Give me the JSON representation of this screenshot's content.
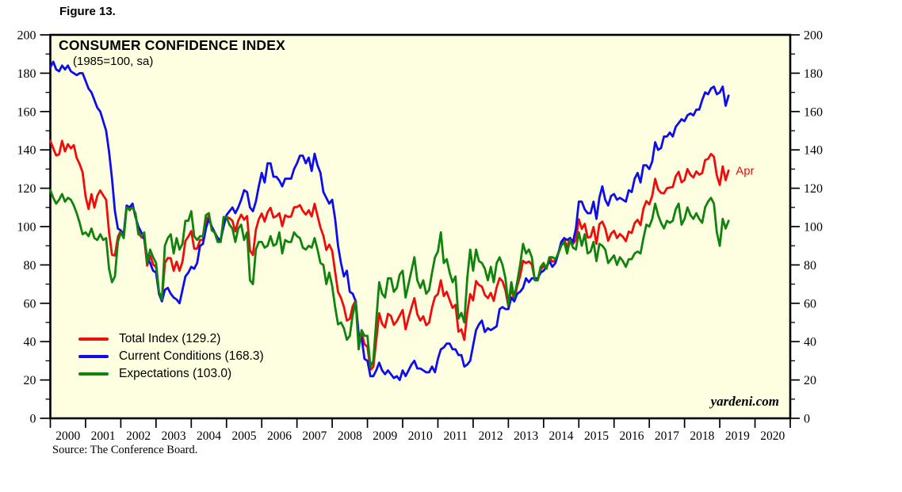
{
  "figure_label": "Figure 13.",
  "chart": {
    "title": "CONSUMER CONFIDENCE INDEX",
    "subtitle": "(1985=100, sa)",
    "annotation": "Apr",
    "watermark": "yardeni.com",
    "plot_background": "#fefee1",
    "legend": [
      {
        "label": "Total Index (129.2)",
        "color": "#ee0c0c"
      },
      {
        "label": "Current Conditions (168.3)",
        "color": "#0d0dee"
      },
      {
        "label": "Expectations (103.0)",
        "color": "#10830f"
      }
    ]
  },
  "source_note": "Source: The Conference Board.",
  "chart_data": {
    "type": "line",
    "title": "CONSUMER CONFIDENCE INDEX",
    "subtitle": "(1985=100, sa)",
    "x_unit": "month",
    "x_start": "2000-01",
    "x_end": "2019-04",
    "x_axis_span_years": 21,
    "x_tick_labels": [
      "2000",
      "2001",
      "2002",
      "2003",
      "2004",
      "2005",
      "2006",
      "2007",
      "2008",
      "2009",
      "2010",
      "2011",
      "2012",
      "2013",
      "2014",
      "2015",
      "2016",
      "2017",
      "2018",
      "2019",
      "2020"
    ],
    "y_axis": {
      "min": 0,
      "max": 200,
      "major_step": 20,
      "minor_step": 10
    },
    "grid": false,
    "legend_position": "inside-lower-left",
    "last_point_label": "Apr",
    "series": [
      {
        "name": "Total Index",
        "last_value": 129.2,
        "color": "#ee0c0c",
        "values": [
          144.7,
          140.8,
          137.1,
          137.7,
          144.7,
          139.2,
          143.0,
          140.8,
          142.5,
          135.8,
          132.6,
          128.3,
          115.7,
          109.2,
          116.9,
          109.9,
          116.1,
          118.9,
          116.3,
          114.0,
          97.0,
          85.3,
          84.9,
          94.6,
          97.8,
          95.0,
          110.7,
          108.5,
          110.3,
          106.3,
          97.4,
          94.5,
          93.7,
          79.6,
          84.9,
          80.3,
          78.8,
          64.8,
          61.4,
          81.0,
          83.6,
          83.5,
          77.0,
          81.7,
          77.0,
          81.7,
          92.5,
          94.8,
          97.7,
          88.5,
          88.5,
          93.0,
          93.1,
          102.8,
          105.7,
          98.7,
          96.7,
          92.9,
          92.6,
          102.7,
          105.1,
          104.4,
          103.0,
          97.5,
          103.1,
          106.2,
          103.6,
          105.5,
          87.5,
          85.2,
          98.3,
          103.8,
          106.8,
          102.7,
          107.5,
          109.8,
          104.7,
          105.4,
          107.0,
          100.2,
          105.9,
          105.1,
          105.3,
          110.0,
          110.2,
          111.2,
          108.2,
          106.3,
          108.5,
          105.3,
          111.9,
          105.6,
          99.5,
          95.2,
          87.8,
          90.6,
          87.3,
          76.4,
          65.9,
          62.8,
          58.1,
          51.0,
          51.9,
          58.5,
          61.4,
          38.8,
          44.7,
          38.6,
          37.4,
          25.3,
          26.9,
          40.8,
          54.8,
          49.3,
          47.4,
          54.5,
          53.4,
          48.7,
          50.6,
          53.6,
          56.5,
          46.4,
          52.3,
          57.7,
          62.7,
          54.3,
          51.0,
          53.2,
          48.6,
          49.9,
          57.8,
          63.4,
          64.8,
          72.0,
          63.8,
          66.0,
          61.7,
          57.6,
          59.2,
          45.2,
          46.4,
          40.9,
          55.2,
          64.8,
          61.5,
          71.6,
          69.5,
          68.7,
          64.4,
          62.7,
          65.4,
          61.3,
          68.4,
          73.1,
          71.5,
          66.7,
          58.4,
          68.0,
          61.9,
          69.0,
          74.3,
          82.1,
          81.0,
          81.8,
          80.2,
          72.4,
          72.0,
          77.5,
          79.4,
          78.3,
          83.9,
          81.7,
          82.2,
          86.4,
          90.3,
          93.4,
          89.0,
          94.1,
          91.0,
          93.1,
          103.8,
          98.8,
          101.4,
          94.3,
          94.6,
          99.8,
          91.0,
          101.3,
          102.6,
          99.1,
          92.6,
          96.3,
          97.8,
          94.0,
          96.1,
          94.7,
          92.4,
          97.4,
          96.7,
          101.8,
          103.5,
          100.8,
          109.4,
          113.3,
          111.6,
          116.1,
          124.9,
          119.4,
          117.6,
          117.3,
          120.0,
          120.4,
          120.6,
          126.2,
          128.6,
          123.1,
          124.3,
          130.0,
          127.0,
          125.6,
          128.8,
          127.1,
          127.9,
          134.7,
          135.3,
          137.9,
          136.4,
          126.6,
          121.7,
          131.4,
          124.2,
          129.2
        ]
      },
      {
        "name": "Current Conditions",
        "last_value": 168.3,
        "color": "#0d0dee",
        "values": [
          183,
          186,
          182,
          181,
          184,
          182,
          184,
          181,
          180,
          179,
          180,
          180,
          176,
          172,
          170,
          166,
          162,
          160,
          155,
          150,
          139,
          125,
          108,
          99,
          98,
          96,
          111,
          110,
          112,
          105,
          100,
          97,
          94,
          84,
          81,
          77,
          76,
          65,
          61,
          67,
          68,
          65,
          63,
          62,
          60,
          67,
          74,
          76,
          79,
          78,
          81,
          90,
          91,
          99,
          104,
          100,
          97,
          94,
          93,
          100,
          106,
          108,
          110,
          107,
          110,
          114,
          119,
          118,
          110,
          108,
          113,
          121,
          128,
          123,
          133,
          133,
          126,
          126,
          124,
          121,
          125,
          125,
          125,
          130,
          133,
          137,
          137,
          133,
          136,
          129,
          138,
          132,
          128,
          118,
          115,
          112,
          114,
          104,
          90,
          81,
          74,
          77,
          66,
          65,
          61,
          44,
          42,
          31,
          30,
          22,
          22,
          25,
          29,
          25,
          23,
          25,
          23,
          21,
          22,
          20,
          25,
          22,
          25,
          28,
          30,
          26,
          26,
          25,
          24,
          24,
          27,
          24,
          31,
          36,
          37,
          39,
          39,
          36,
          36,
          33,
          33,
          27,
          28,
          30,
          38,
          46,
          49,
          51,
          45,
          47,
          46,
          47,
          48,
          57,
          58,
          57,
          57,
          63,
          61,
          65,
          66,
          68,
          73,
          71,
          73,
          73,
          73,
          76,
          77,
          79,
          82,
          79,
          81,
          86,
          92,
          94,
          93,
          94,
          92,
          99,
          113,
          113,
          109,
          107,
          107,
          113,
          104,
          115,
          121,
          114,
          111,
          116,
          117,
          114,
          115,
          114,
          113,
          119,
          118,
          125,
          128,
          123,
          132,
          132,
          130,
          134,
          144,
          140,
          141,
          147,
          147,
          149,
          147,
          152,
          154,
          156,
          155,
          158,
          159,
          158,
          161,
          161,
          166,
          170,
          169,
          172,
          173,
          169,
          170,
          173,
          163,
          168.3
        ]
      },
      {
        "name": "Expectations",
        "last_value": 103.0,
        "color": "#10830f",
        "values": [
          119,
          115,
          112,
          114,
          117,
          113,
          115,
          114,
          111,
          107,
          102,
          96,
          97,
          95,
          99,
          94,
          93,
          96,
          93,
          94,
          78,
          71,
          74,
          92,
          97,
          94,
          110,
          109,
          110,
          107,
          96,
          95,
          97,
          81,
          88,
          84,
          81,
          66,
          62,
          90,
          94,
          96,
          86,
          94,
          88,
          91,
          103,
          103,
          108,
          95,
          93,
          95,
          95,
          106,
          107,
          98,
          97,
          92,
          92,
          105,
          105,
          101,
          99,
          92,
          99,
          101,
          93,
          97,
          72,
          70,
          88,
          92,
          92,
          89,
          90,
          95,
          90,
          91,
          97,
          86,
          93,
          92,
          92,
          97,
          95,
          94,
          89,
          88,
          90,
          89,
          94,
          88,
          81,
          80,
          70,
          76,
          69,
          58,
          49,
          50,
          47,
          41,
          43,
          54,
          61,
          36,
          46,
          43,
          43,
          27,
          30,
          51,
          71,
          65,
          63,
          73,
          73,
          66,
          68,
          75,
          77,
          63,
          70,
          77,
          84,
          72,
          68,
          72,
          65,
          67,
          76,
          84,
          87,
          97,
          81,
          83,
          76,
          71,
          74,
          52,
          55,
          50,
          73,
          88,
          77,
          88,
          82,
          81,
          78,
          72,
          79,
          71,
          81,
          84,
          80,
          73,
          59,
          71,
          63,
          71,
          80,
          91,
          86,
          88,
          84,
          72,
          72,
          79,
          81,
          78,
          84,
          84,
          83,
          86,
          90,
          92,
          86,
          93,
          89,
          88,
          97,
          90,
          96,
          86,
          87,
          92,
          82,
          91,
          90,
          88,
          81,
          83,
          85,
          80,
          84,
          82,
          79,
          83,
          83,
          86,
          87,
          86,
          94,
          101,
          100,
          104,
          112,
          106,
          102,
          99,
          103,
          102,
          103,
          109,
          112,
          101,
          104,
          110,
          106,
          104,
          107,
          104,
          102,
          110,
          113,
          115,
          112,
          97,
          90,
          104,
          99,
          103.0
        ]
      }
    ]
  }
}
